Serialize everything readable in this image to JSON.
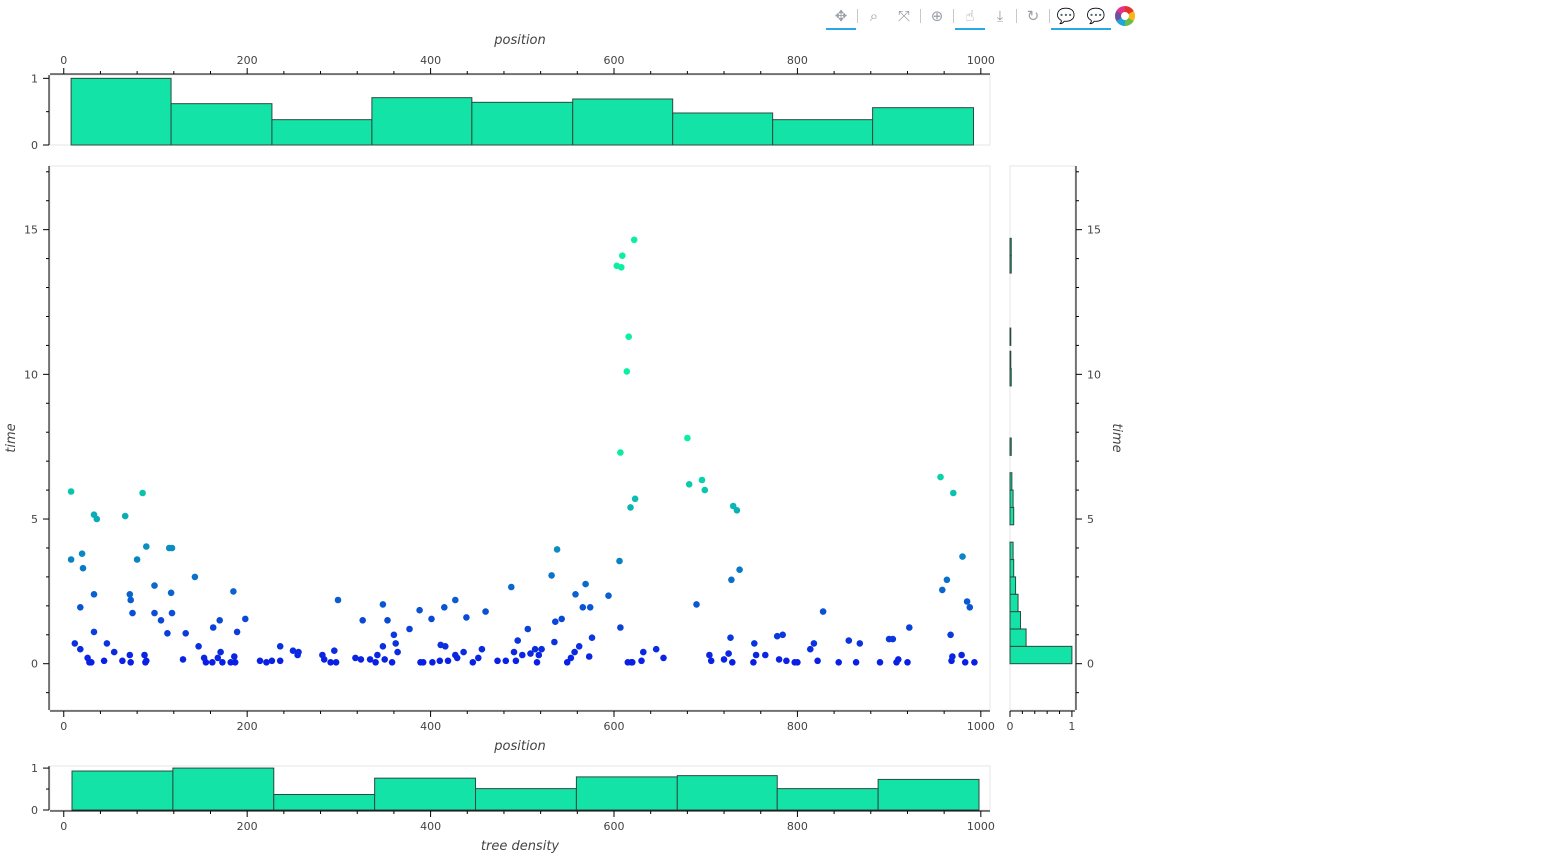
{
  "toolbar": {
    "tools": [
      {
        "name": "pan-tool",
        "glyph": "✥",
        "active": true
      },
      {
        "name": "box-zoom-tool",
        "glyph": "⌕",
        "active": false
      },
      {
        "name": "zoom-out-tool",
        "glyph": "⤧",
        "active": false
      },
      {
        "name": "wheel-zoom-tool",
        "glyph": "⊕",
        "active": false
      },
      {
        "name": "tap-tool",
        "glyph": "☝",
        "active": true
      },
      {
        "name": "save-tool",
        "glyph": "⤓",
        "active": false
      },
      {
        "name": "reset-tool",
        "glyph": "↻",
        "active": false
      },
      {
        "name": "hover-tool-1",
        "glyph": "💬",
        "active": true
      },
      {
        "name": "hover-tool-2",
        "glyph": "💬",
        "active": true
      }
    ],
    "logo": "bokeh-logo-icon"
  },
  "colors": {
    "bar_fill": "#14e3a8",
    "bar_stroke": "#2b4a3f",
    "point_low": "#0a1ee6",
    "point_high": "#0af0a0"
  },
  "chart_data": [
    {
      "id": "main-scatter",
      "type": "scatter",
      "xlabel": "position",
      "ylabel": "time",
      "xlim": [
        -15,
        1010
      ],
      "ylim": [
        -1.6,
        17.2
      ],
      "xticks": [
        0,
        200,
        400,
        600,
        800,
        1000
      ],
      "yticks": [
        0,
        5,
        10,
        15
      ],
      "points": [
        [
          8,
          5.95
        ],
        [
          8,
          3.6
        ],
        [
          12,
          0.7
        ],
        [
          18,
          0.5
        ],
        [
          20,
          3.8
        ],
        [
          21,
          3.3
        ],
        [
          18,
          1.95
        ],
        [
          26,
          0.2
        ],
        [
          28,
          0.05
        ],
        [
          30,
          0.05
        ],
        [
          33,
          1.1
        ],
        [
          33,
          5.15
        ],
        [
          33,
          2.4
        ],
        [
          36,
          5.0
        ],
        [
          44,
          0.1
        ],
        [
          47,
          0.7
        ],
        [
          55,
          0.4
        ],
        [
          64,
          0.1
        ],
        [
          67,
          5.1
        ],
        [
          72,
          0.3
        ],
        [
          72,
          2.4
        ],
        [
          73,
          2.2
        ],
        [
          73,
          0.05
        ],
        [
          75,
          1.75
        ],
        [
          80,
          3.6
        ],
        [
          86,
          5.9
        ],
        [
          88,
          0.3
        ],
        [
          89,
          0.05
        ],
        [
          90,
          0.1
        ],
        [
          90,
          4.05
        ],
        [
          99,
          2.7
        ],
        [
          99,
          1.75
        ],
        [
          106,
          1.5
        ],
        [
          113,
          1.05
        ],
        [
          115,
          4.0
        ],
        [
          118,
          4.0
        ],
        [
          117,
          2.45
        ],
        [
          118,
          1.75
        ],
        [
          130,
          0.15
        ],
        [
          133,
          1.05
        ],
        [
          143,
          3.0
        ],
        [
          147,
          0.6
        ],
        [
          153,
          0.2
        ],
        [
          155,
          0.05
        ],
        [
          162,
          0.05
        ],
        [
          163,
          1.25
        ],
        [
          168,
          0.2
        ],
        [
          170,
          1.5
        ],
        [
          171,
          0.4
        ],
        [
          173,
          0.05
        ],
        [
          182,
          0.05
        ],
        [
          185,
          2.5
        ],
        [
          186,
          0.25
        ],
        [
          187,
          0.05
        ],
        [
          189,
          1.1
        ],
        [
          198,
          1.55
        ],
        [
          214,
          0.1
        ],
        [
          221,
          0.05
        ],
        [
          227,
          0.1
        ],
        [
          236,
          0.1
        ],
        [
          236,
          0.6
        ],
        [
          250,
          0.45
        ],
        [
          255,
          0.3
        ],
        [
          256,
          0.4
        ],
        [
          282,
          0.3
        ],
        [
          284,
          0.15
        ],
        [
          291,
          0.05
        ],
        [
          295,
          0.45
        ],
        [
          297,
          0.05
        ],
        [
          299,
          2.2
        ],
        [
          318,
          0.2
        ],
        [
          324,
          0.15
        ],
        [
          326,
          1.5
        ],
        [
          334,
          0.15
        ],
        [
          340,
          0.05
        ],
        [
          342,
          0.3
        ],
        [
          348,
          0.6
        ],
        [
          348,
          2.05
        ],
        [
          350,
          0.15
        ],
        [
          353,
          1.5
        ],
        [
          358,
          0.05
        ],
        [
          360,
          1.0
        ],
        [
          362,
          0.7
        ],
        [
          364,
          0.4
        ],
        [
          377,
          1.2
        ],
        [
          388,
          1.85
        ],
        [
          389,
          0.05
        ],
        [
          392,
          0.05
        ],
        [
          401,
          1.55
        ],
        [
          402,
          0.05
        ],
        [
          410,
          0.1
        ],
        [
          411,
          0.65
        ],
        [
          415,
          1.95
        ],
        [
          416,
          0.6
        ],
        [
          419,
          0.1
        ],
        [
          427,
          0.3
        ],
        [
          429,
          0.2
        ],
        [
          427,
          2.2
        ],
        [
          436,
          0.4
        ],
        [
          439,
          1.6
        ],
        [
          446,
          0.05
        ],
        [
          452,
          0.2
        ],
        [
          456,
          0.5
        ],
        [
          460,
          1.8
        ],
        [
          473,
          0.1
        ],
        [
          482,
          0.1
        ],
        [
          488,
          2.65
        ],
        [
          491,
          0.4
        ],
        [
          493,
          0.1
        ],
        [
          495,
          0.8
        ],
        [
          500,
          0.3
        ],
        [
          506,
          1.2
        ],
        [
          509,
          0.35
        ],
        [
          514,
          0.5
        ],
        [
          516,
          0.05
        ],
        [
          518,
          0.3
        ],
        [
          521,
          0.5
        ],
        [
          532,
          3.05
        ],
        [
          535,
          0.75
        ],
        [
          536,
          1.45
        ],
        [
          538,
          3.95
        ],
        [
          543,
          1.55
        ],
        [
          549,
          0.05
        ],
        [
          553,
          0.2
        ],
        [
          557,
          0.4
        ],
        [
          558,
          2.4
        ],
        [
          562,
          0.6
        ],
        [
          566,
          1.95
        ],
        [
          569,
          2.75
        ],
        [
          573,
          0.25
        ],
        [
          574,
          1.95
        ],
        [
          576,
          0.9
        ],
        [
          594,
          2.35
        ],
        [
          603,
          13.75
        ],
        [
          606,
          3.55
        ],
        [
          607,
          7.3
        ],
        [
          607,
          1.25
        ],
        [
          608,
          13.7
        ],
        [
          609,
          14.1
        ],
        [
          614,
          10.1
        ],
        [
          615,
          0.05
        ],
        [
          616,
          11.3
        ],
        [
          618,
          5.4
        ],
        [
          619,
          0.05
        ],
        [
          620,
          0.05
        ],
        [
          622,
          14.65
        ],
        [
          623,
          5.7
        ],
        [
          630,
          0.1
        ],
        [
          632,
          0.4
        ],
        [
          646,
          0.5
        ],
        [
          654,
          0.2
        ],
        [
          680,
          7.8
        ],
        [
          682,
          6.2
        ],
        [
          690,
          2.05
        ],
        [
          696,
          6.35
        ],
        [
          699,
          6.0
        ],
        [
          704,
          0.3
        ],
        [
          706,
          0.1
        ],
        [
          720,
          0.15
        ],
        [
          725,
          0.35
        ],
        [
          727,
          0.9
        ],
        [
          728,
          2.9
        ],
        [
          729,
          0.05
        ],
        [
          730,
          5.45
        ],
        [
          734,
          5.3
        ],
        [
          737,
          3.25
        ],
        [
          752,
          0.05
        ],
        [
          753,
          0.7
        ],
        [
          755,
          0.3
        ],
        [
          765,
          0.3
        ],
        [
          778,
          0.95
        ],
        [
          780,
          0.15
        ],
        [
          784,
          1.0
        ],
        [
          788,
          0.1
        ],
        [
          797,
          0.05
        ],
        [
          800,
          0.05
        ],
        [
          814,
          0.5
        ],
        [
          818,
          0.7
        ],
        [
          822,
          0.1
        ],
        [
          828,
          1.8
        ],
        [
          845,
          0.05
        ],
        [
          856,
          0.8
        ],
        [
          864,
          0.05
        ],
        [
          868,
          0.7
        ],
        [
          890,
          0.05
        ],
        [
          900,
          0.85
        ],
        [
          904,
          0.85
        ],
        [
          908,
          0.05
        ],
        [
          910,
          0.15
        ],
        [
          920,
          0.05
        ],
        [
          922,
          1.25
        ],
        [
          956,
          6.45
        ],
        [
          958,
          2.55
        ],
        [
          963,
          2.9
        ],
        [
          967,
          1.0
        ],
        [
          968,
          0.1
        ],
        [
          969,
          0.25
        ],
        [
          970,
          5.9
        ],
        [
          979,
          0.3
        ],
        [
          980,
          3.7
        ],
        [
          983,
          0.05
        ],
        [
          985,
          2.15
        ],
        [
          988,
          1.95
        ],
        [
          993,
          0.05
        ]
      ]
    },
    {
      "id": "top-histogram",
      "type": "bar",
      "xlabel": "position",
      "ylabel": "",
      "xlim": [
        -15,
        1010
      ],
      "ylim": [
        0,
        1.05
      ],
      "xticks": [
        0,
        200,
        400,
        600,
        800,
        1000
      ],
      "yticks": [
        0,
        0.5,
        1
      ],
      "ytick_labels": [
        "0",
        "",
        "1"
      ],
      "bins": [
        [
          8,
          117,
          1.0
        ],
        [
          117,
          227,
          0.62
        ],
        [
          227,
          336,
          0.38
        ],
        [
          336,
          445,
          0.71
        ],
        [
          445,
          555,
          0.64
        ],
        [
          555,
          664,
          0.69
        ],
        [
          664,
          773,
          0.48
        ],
        [
          773,
          882,
          0.38
        ],
        [
          882,
          992,
          0.56
        ]
      ]
    },
    {
      "id": "bottom-histogram",
      "type": "bar",
      "xlabel": "tree density",
      "ylabel": "",
      "xlim": [
        -15,
        1010
      ],
      "ylim": [
        0,
        1.05
      ],
      "xticks": [
        0,
        200,
        400,
        600,
        800,
        1000
      ],
      "yticks": [
        0,
        0.5,
        1
      ],
      "ytick_labels": [
        "0",
        "",
        "1"
      ],
      "bins": [
        [
          9,
          119,
          0.93
        ],
        [
          119,
          229,
          1.0
        ],
        [
          229,
          339,
          0.37
        ],
        [
          339,
          449,
          0.76
        ],
        [
          449,
          559,
          0.51
        ],
        [
          559,
          669,
          0.79
        ],
        [
          669,
          778,
          0.82
        ],
        [
          778,
          888,
          0.51
        ],
        [
          888,
          998,
          0.73
        ]
      ]
    },
    {
      "id": "right-histogram",
      "type": "bar",
      "orientation": "horizontal",
      "xlabel": "",
      "ylabel": "time",
      "xlim": [
        0,
        1.05
      ],
      "ylim": [
        -1.6,
        17.2
      ],
      "xticks": [
        0,
        1
      ],
      "yticks": [
        0,
        5,
        10,
        15
      ],
      "bins": [
        [
          0,
          0.6,
          1.0
        ],
        [
          0.6,
          1.2,
          0.26
        ],
        [
          1.2,
          1.8,
          0.17
        ],
        [
          1.8,
          2.4,
          0.13
        ],
        [
          2.4,
          3.0,
          0.09
        ],
        [
          3.0,
          3.6,
          0.06
        ],
        [
          3.6,
          4.2,
          0.05
        ],
        [
          4.8,
          5.4,
          0.06
        ],
        [
          5.4,
          6.0,
          0.05
        ],
        [
          6.0,
          6.6,
          0.03
        ],
        [
          7.2,
          7.8,
          0.02
        ],
        [
          9.6,
          10.2,
          0.02
        ],
        [
          10.2,
          10.8,
          0.01
        ],
        [
          11.0,
          11.6,
          0.01
        ],
        [
          13.5,
          14.1,
          0.02
        ],
        [
          14.1,
          14.7,
          0.02
        ]
      ]
    }
  ]
}
